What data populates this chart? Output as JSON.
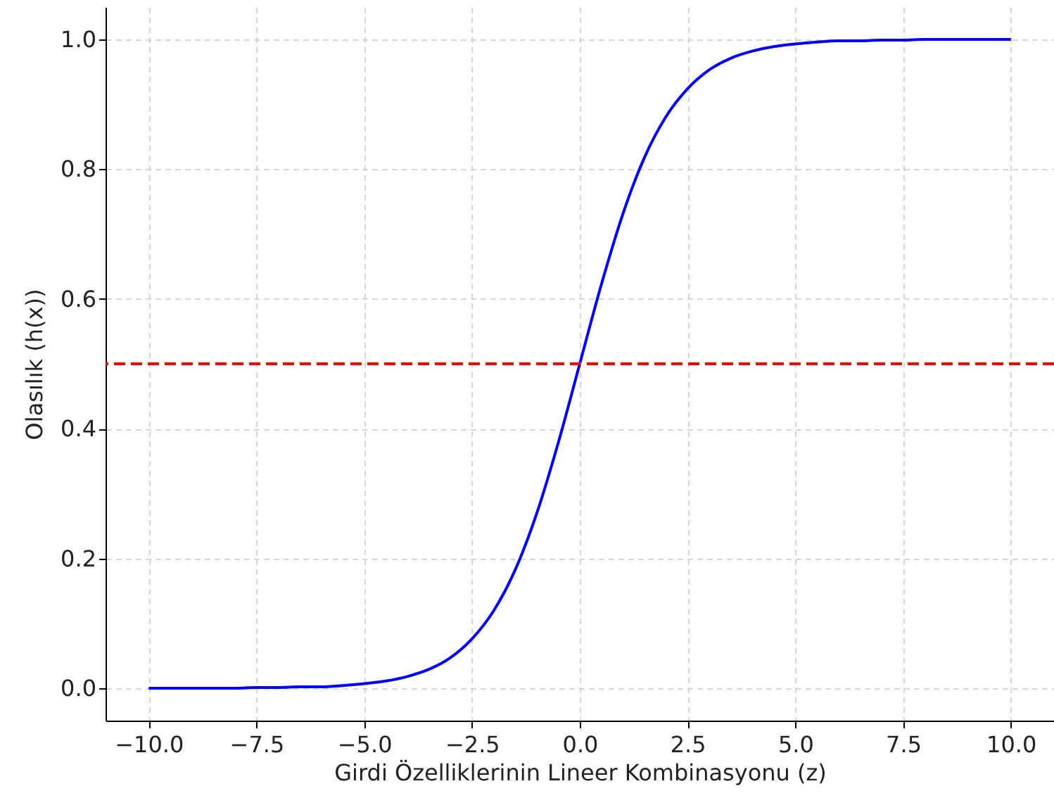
{
  "chart_data": {
    "type": "line",
    "xlabel": "Girdi Özelliklerinin Lineer Kombinasyonu (z)",
    "ylabel": "Olasılık (h(x))",
    "x": [
      -10,
      -9.5,
      -9,
      -8.5,
      -8,
      -7.5,
      -7,
      -6.5,
      -6,
      -5.5,
      -5,
      -4.5,
      -4,
      -3.5,
      -3,
      -2.5,
      -2,
      -1.5,
      -1,
      -0.5,
      0,
      0.5,
      1,
      1.5,
      2,
      2.5,
      3,
      3.5,
      4,
      4.5,
      5,
      5.5,
      6,
      6.5,
      7,
      7.5,
      8,
      8.5,
      9,
      9.5,
      10
    ],
    "series": [
      {
        "color": "#0000ff",
        "values": [
          0,
          0,
          0,
          0,
          0,
          0.001,
          0.001,
          0.002,
          0.002,
          0.004,
          0.007,
          0.011,
          0.018,
          0.029,
          0.047,
          0.076,
          0.119,
          0.182,
          0.269,
          0.378,
          0.5,
          0.622,
          0.731,
          0.818,
          0.881,
          0.924,
          0.953,
          0.971,
          0.982,
          0.989,
          0.993,
          0.996,
          0.998,
          0.998,
          0.999,
          0.999,
          1,
          1,
          1,
          1,
          1
        ]
      }
    ],
    "xlim": [
      -11,
      11
    ],
    "xticks": [
      {
        "value": -10,
        "label": "−10.0"
      },
      {
        "value": -7.5,
        "label": "−7.5"
      },
      {
        "value": -5,
        "label": "−5.0"
      },
      {
        "value": -2.5,
        "label": "−2.5"
      },
      {
        "value": 0,
        "label": "0.0"
      },
      {
        "value": 2.5,
        "label": "2.5"
      },
      {
        "value": 5,
        "label": "5.0"
      },
      {
        "value": 7.5,
        "label": "7.5"
      },
      {
        "value": 10,
        "label": "10.0"
      }
    ],
    "ylim": [
      -0.05,
      1.05
    ],
    "yticks": [
      {
        "value": 0,
        "label": "0.0"
      },
      {
        "value": 0.2,
        "label": "0.2"
      },
      {
        "value": 0.4,
        "label": "0.4"
      },
      {
        "value": 0.6,
        "label": "0.6"
      },
      {
        "value": 0.8,
        "label": "0.8"
      },
      {
        "value": 1,
        "label": "1.0"
      }
    ],
    "ref_lines": [
      {
        "axis": "y",
        "value": 0.5,
        "color": "#ff0000",
        "line_style": "dashed"
      }
    ],
    "grid": true,
    "line_style": "solid"
  }
}
